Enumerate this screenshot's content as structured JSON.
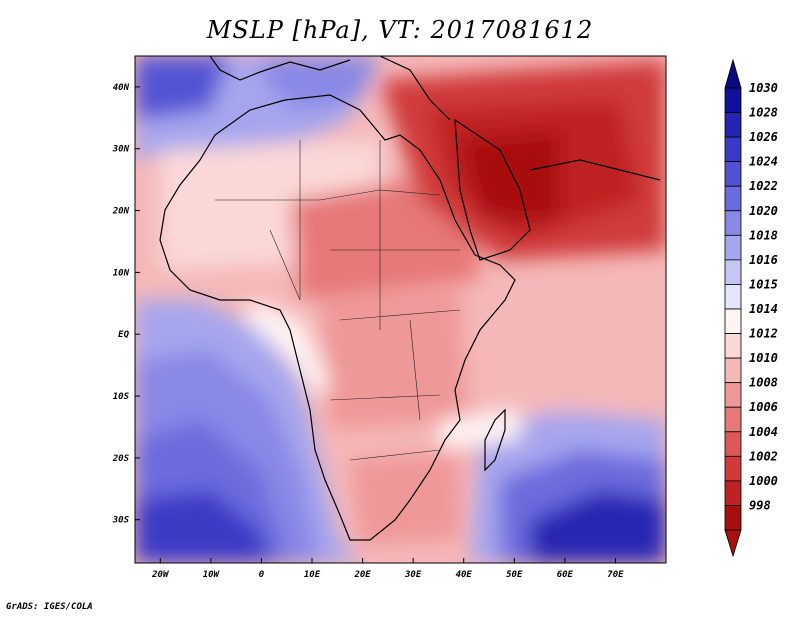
{
  "title": "MSLP [hPa], VT: 2017081612",
  "credit": "GrADS: IGES/COLA",
  "map": {
    "lon_range": [
      -25,
      80
    ],
    "lat_range": [
      -37,
      45
    ],
    "lon_ticks": [
      {
        "value": -20,
        "label": "20W"
      },
      {
        "value": -10,
        "label": "10W"
      },
      {
        "value": 0,
        "label": "0"
      },
      {
        "value": 10,
        "label": "10E"
      },
      {
        "value": 20,
        "label": "20E"
      },
      {
        "value": 30,
        "label": "30E"
      },
      {
        "value": 40,
        "label": "40E"
      },
      {
        "value": 50,
        "label": "50E"
      },
      {
        "value": 60,
        "label": "60E"
      },
      {
        "value": 70,
        "label": "70E"
      }
    ],
    "lat_ticks": [
      {
        "value": 40,
        "label": "40N"
      },
      {
        "value": 30,
        "label": "30N"
      },
      {
        "value": 20,
        "label": "20N"
      },
      {
        "value": 10,
        "label": "10N"
      },
      {
        "value": 0,
        "label": "EQ"
      },
      {
        "value": -10,
        "label": "10S"
      },
      {
        "value": -20,
        "label": "20S"
      },
      {
        "value": -30,
        "label": "30S"
      }
    ]
  },
  "colorbar": {
    "levels": [
      {
        "label": "1030",
        "color": "#10109a"
      },
      {
        "label": "1028",
        "color": "#2525b2"
      },
      {
        "label": "1026",
        "color": "#3a3ac6"
      },
      {
        "label": "1024",
        "color": "#5252d4"
      },
      {
        "label": "1022",
        "color": "#6c6cde"
      },
      {
        "label": "1020",
        "color": "#8888e6"
      },
      {
        "label": "1018",
        "color": "#a6a6ee"
      },
      {
        "label": "1016",
        "color": "#c6c6f5"
      },
      {
        "label": "1015",
        "color": "#e4e4fb"
      },
      {
        "label": "1014",
        "color": "#fff4f4"
      },
      {
        "label": "1012",
        "color": "#fbd8d8"
      },
      {
        "label": "1010",
        "color": "#f5b8b8"
      },
      {
        "label": "1008",
        "color": "#ef9898"
      },
      {
        "label": "1006",
        "color": "#e77878"
      },
      {
        "label": "1004",
        "color": "#dd5858"
      },
      {
        "label": "1002",
        "color": "#d03a3a"
      },
      {
        "label": "1000",
        "color": "#bf2222"
      },
      {
        "label": "998",
        "color": "#a81010"
      }
    ],
    "top_color": "#0a0a80",
    "bottom_color": "#a81010"
  }
}
